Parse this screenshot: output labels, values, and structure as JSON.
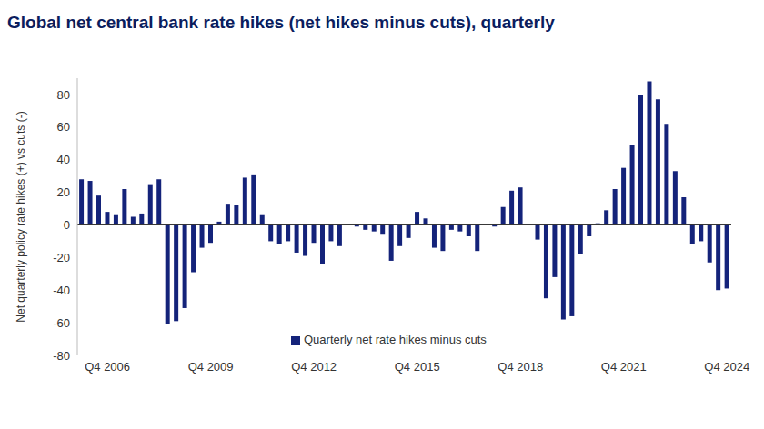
{
  "chart_data": {
    "type": "bar",
    "title": "Global net central bank rate hikes (net hikes minus cuts), quarterly",
    "y_label": "Net quarterly policy rate hikes (+) vs cuts (-)",
    "categories": [
      null,
      null,
      null,
      "Q4 2006",
      null,
      null,
      null,
      null,
      null,
      null,
      null,
      null,
      null,
      null,
      null,
      "Q4 2009",
      null,
      null,
      null,
      null,
      null,
      null,
      null,
      null,
      null,
      null,
      null,
      "Q4 2012",
      null,
      null,
      null,
      null,
      null,
      null,
      null,
      null,
      null,
      null,
      null,
      "Q4 2015",
      null,
      null,
      null,
      null,
      null,
      null,
      null,
      null,
      null,
      null,
      null,
      "Q4 2018",
      null,
      null,
      null,
      null,
      null,
      null,
      null,
      null,
      null,
      null,
      null,
      "Q4 2021",
      null,
      null,
      null,
      null,
      null,
      null,
      null,
      null,
      null,
      null,
      null,
      "Q4 2024"
    ],
    "series": [
      {
        "name": "Quarterly net rate hikes minus cuts",
        "color": "#14237a",
        "values": [
          28,
          27,
          18,
          8,
          6,
          22,
          5,
          7,
          25,
          28,
          -61,
          -59,
          -51,
          -29,
          -14,
          -11,
          2,
          13,
          12,
          29,
          31,
          6,
          -10,
          -12,
          -10,
          -17,
          -19,
          -11,
          -24,
          -10,
          -13,
          0,
          -1,
          -3,
          -4,
          -6,
          -22,
          -13,
          -8,
          8,
          4,
          -14,
          -16,
          -3,
          -4,
          -7,
          -16,
          0,
          -1,
          11,
          21,
          23,
          0,
          -9,
          -45,
          -32,
          -58,
          -56,
          -18,
          -7,
          1,
          9,
          22,
          35,
          49,
          80,
          88,
          77,
          62,
          33,
          17,
          -12,
          -10,
          -23,
          -40,
          -39
        ]
      }
    ],
    "ylim": [
      -80,
      90
    ],
    "yticks": [
      -80,
      -60,
      -40,
      -20,
      0,
      20,
      40,
      60,
      80
    ],
    "grid": false,
    "legend": "bottom"
  }
}
